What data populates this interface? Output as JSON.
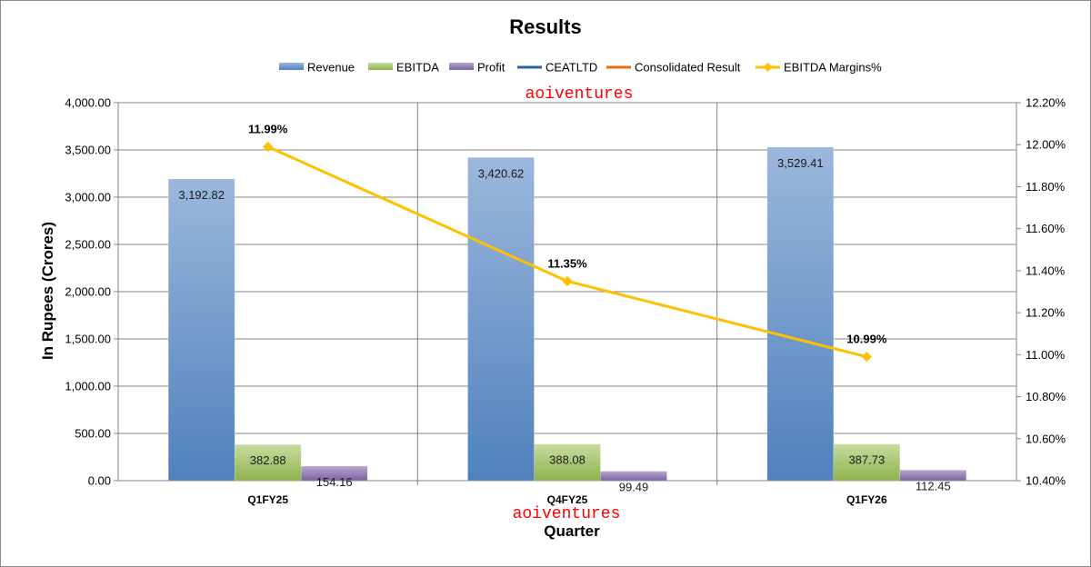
{
  "chart_data": {
    "type": "bar",
    "title": "Results",
    "xlabel": "Quarter",
    "ylabel": "In Rupees (Crores)",
    "categories": [
      "Q1FY25",
      "Q4FY25",
      "Q1FY26"
    ],
    "ylim": [
      0,
      4000
    ],
    "y_ticks": [
      "0.00",
      "500.00",
      "1,000.00",
      "1,500.00",
      "2,000.00",
      "2,500.00",
      "3,000.00",
      "3,500.00",
      "4,000.00"
    ],
    "y2lim": [
      10.4,
      12.2
    ],
    "y2_ticks": [
      "10.40%",
      "10.60%",
      "10.80%",
      "11.00%",
      "11.20%",
      "11.40%",
      "11.60%",
      "11.80%",
      "12.00%",
      "12.20%"
    ],
    "series": [
      {
        "name": "Revenue",
        "kind": "bar",
        "axis": "left",
        "color": "#4f81bd",
        "values": [
          3192.82,
          3420.62,
          3529.41
        ],
        "labels": [
          "3,192.82",
          "3,420.62",
          "3,529.41"
        ]
      },
      {
        "name": "EBITDA",
        "kind": "bar",
        "axis": "left",
        "color": "#9bbb59",
        "values": [
          382.88,
          388.08,
          387.73
        ],
        "labels": [
          "382.88",
          "388.08",
          "387.73"
        ]
      },
      {
        "name": "Profit",
        "kind": "bar",
        "axis": "left",
        "color": "#8064a2",
        "values": [
          154.16,
          99.49,
          112.45
        ],
        "labels": [
          "154.16",
          "99.49",
          "112.45"
        ]
      },
      {
        "name": "CEATLTD",
        "kind": "legend-only",
        "color": "#2e5f9e"
      },
      {
        "name": "Consolidated Result",
        "kind": "legend-only",
        "color": "#e46c0a"
      },
      {
        "name": "EBITDA Margins%",
        "kind": "line",
        "axis": "right",
        "color": "#ffc000",
        "values": [
          11.99,
          11.35,
          10.99
        ],
        "labels": [
          "11.99%",
          "11.35%",
          "10.99%"
        ]
      }
    ],
    "legend_position": "top",
    "grid": true,
    "watermarks": [
      "aoiventures",
      "aoiventures"
    ]
  }
}
